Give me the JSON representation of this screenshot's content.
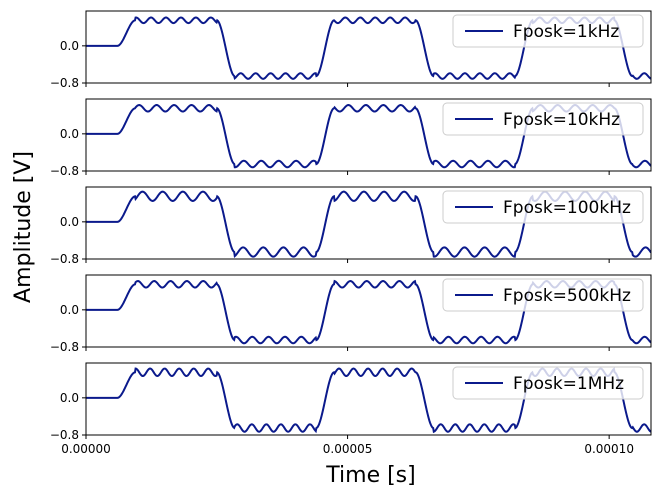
{
  "chart_data": {
    "type": "line",
    "xlabel": "Time [s]",
    "ylabel": "Amplitude [V]",
    "xlim": [
      0,
      0.000108
    ],
    "ylim": [
      -0.8,
      0.75
    ],
    "x_ticks": [
      "0.00000",
      "0.00005",
      "0.00010"
    ],
    "x_tick_values": [
      0,
      5e-05,
      0.0001
    ],
    "y_ticks": [
      "0.0",
      "−0.8"
    ],
    "y_tick_values": [
      0.0,
      -0.8
    ],
    "line_color": "#0b1a8c",
    "legend_location": "upper-right",
    "signal": {
      "period_s": 3.8e-05,
      "start_s": 6e-06,
      "high_v": 0.55,
      "low_v": -0.65,
      "baseline_v": 0.0
    },
    "panels": [
      {
        "legend": "Fposk=1kHz",
        "ripple_v": 0.06,
        "ripple_freq_hz": 350000
      },
      {
        "legend": "Fposk=10kHz",
        "ripple_v": 0.07,
        "ripple_freq_hz": 300000
      },
      {
        "legend": "Fposk=100kHz",
        "ripple_v": 0.1,
        "ripple_freq_hz": 260000
      },
      {
        "legend": "Fposk=500kHz",
        "ripple_v": 0.07,
        "ripple_freq_hz": 320000
      },
      {
        "legend": "Fposk=1MHz",
        "ripple_v": 0.08,
        "ripple_freq_hz": 360000
      }
    ]
  }
}
